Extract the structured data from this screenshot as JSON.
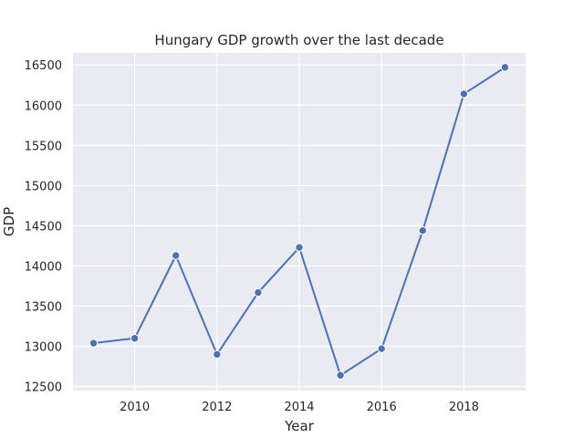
{
  "chart_data": {
    "type": "line",
    "title": "Hungary GDP growth over the last decade",
    "xlabel": "Year",
    "ylabel": "GDP",
    "x": [
      2009,
      2010,
      2011,
      2012,
      2013,
      2014,
      2015,
      2016,
      2017,
      2018,
      2019
    ],
    "series": [
      {
        "values": [
          13040,
          13100,
          14130,
          12900,
          13670,
          14230,
          12640,
          12970,
          14440,
          16140,
          16470
        ]
      }
    ],
    "xlim": [
      2008.5,
      2019.5
    ],
    "ylim": [
      12450,
      16650
    ],
    "xticks": [
      "2010",
      "2012",
      "2014",
      "2016",
      "2018"
    ],
    "yticks": [
      "12500",
      "13000",
      "13500",
      "14000",
      "14500",
      "15000",
      "15500",
      "16000",
      "16500"
    ],
    "grid": true,
    "colors": {
      "background": "#eaeaf2",
      "grid": "#ffffff",
      "line": "#4c72b0"
    }
  }
}
